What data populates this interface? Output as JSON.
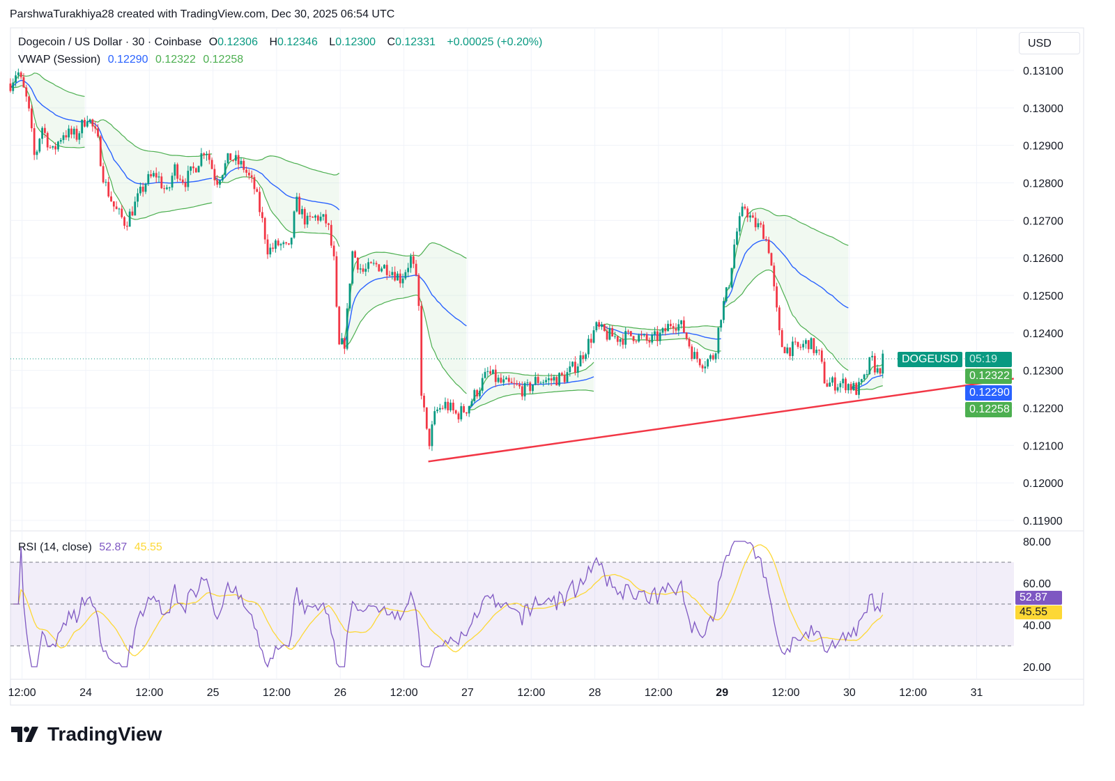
{
  "header": {
    "attribution": "ParshwaTurakhiya28 created with TradingView.com, Dec 30, 2025 06:54 UTC"
  },
  "legend": {
    "symbol": "Dogecoin / US Dollar · 30 · Coinbase",
    "o_label": "O",
    "o": "0.12306",
    "h_label": "H",
    "h": "0.12346",
    "l_label": "L",
    "l": "0.12300",
    "c_label": "C",
    "c": "0.12331",
    "change": "+0.00025 (+0.20%)",
    "vwap_label": "VWAP (Session)",
    "vwap": "0.12290",
    "vwap_upper": "0.12322",
    "vwap_lower": "0.12258",
    "rsi_label": "RSI (14, close)",
    "rsi": "52.87",
    "rsi_ma": "45.55"
  },
  "currency": "USD",
  "price_tags": {
    "symbol": "DOGEUSD",
    "countdown": "05:19",
    "upper": "0.12322",
    "vwap": "0.12290",
    "lower": "0.12258",
    "rsi": "52.87",
    "rsi_ma": "45.55"
  },
  "colors": {
    "up": "#089981",
    "down": "#f23645",
    "vwap": "#2962ff",
    "band": "#4caf50",
    "rsi": "#7e57c2",
    "rsi_ma": "#fdd835",
    "trend": "#f23645"
  },
  "logo": "TradingView",
  "chart_data": {
    "type": "candlestick",
    "title": "Dogecoin / US Dollar · 30 · Coinbase",
    "x_unit": "hours since Dec 24 00:00 UTC",
    "anchors": [
      [
        -14.2,
        0.13065
      ],
      [
        -12.9,
        0.13102
      ],
      [
        -10.9,
        0.13009
      ],
      [
        -9.6,
        0.1286
      ],
      [
        -8.3,
        0.12953
      ],
      [
        -6.3,
        0.12879
      ],
      [
        -4.3,
        0.12934
      ],
      [
        -1.7,
        0.12925
      ],
      [
        0.3,
        0.12981
      ],
      [
        2.2,
        0.12916
      ],
      [
        3.5,
        0.12804
      ],
      [
        5.5,
        0.1273
      ],
      [
        7.5,
        0.12693
      ],
      [
        9.5,
        0.12748
      ],
      [
        11.4,
        0.12804
      ],
      [
        13.4,
        0.12823
      ],
      [
        15.4,
        0.12767
      ],
      [
        16.7,
        0.12841
      ],
      [
        18.7,
        0.12804
      ],
      [
        20.6,
        0.12841
      ],
      [
        22.6,
        0.12897
      ],
      [
        24.6,
        0.12804
      ],
      [
        27.2,
        0.12869
      ],
      [
        29.8,
        0.12841
      ],
      [
        31.8,
        0.12786
      ],
      [
        33.1,
        0.12711
      ],
      [
        34.4,
        0.12618
      ],
      [
        36.4,
        0.12637
      ],
      [
        38.4,
        0.12618
      ],
      [
        39.7,
        0.12748
      ],
      [
        41.7,
        0.12693
      ],
      [
        43.6,
        0.12711
      ],
      [
        45.6,
        0.12693
      ],
      [
        46.9,
        0.12581
      ],
      [
        47.6,
        0.12358
      ],
      [
        48.9,
        0.12376
      ],
      [
        50.2,
        0.12618
      ],
      [
        52.2,
        0.12562
      ],
      [
        54.8,
        0.12581
      ],
      [
        57.4,
        0.12572
      ],
      [
        59.4,
        0.12544
      ],
      [
        61.4,
        0.126
      ],
      [
        62.7,
        0.12507
      ],
      [
        63.3,
        0.12246
      ],
      [
        64.6,
        0.12097
      ],
      [
        66.0,
        0.1219
      ],
      [
        67.9,
        0.12209
      ],
      [
        69.9,
        0.12181
      ],
      [
        71.9,
        0.122
      ],
      [
        73.8,
        0.12246
      ],
      [
        75.8,
        0.12293
      ],
      [
        78.4,
        0.12265
      ],
      [
        81.1,
        0.12256
      ],
      [
        83.0,
        0.12246
      ],
      [
        85.0,
        0.12274
      ],
      [
        87.6,
        0.12274
      ],
      [
        90.3,
        0.12283
      ],
      [
        92.9,
        0.12321
      ],
      [
        94.9,
        0.12376
      ],
      [
        96.2,
        0.12414
      ],
      [
        98.2,
        0.12395
      ],
      [
        100.8,
        0.12386
      ],
      [
        103.4,
        0.12395
      ],
      [
        106.0,
        0.12376
      ],
      [
        108.7,
        0.12395
      ],
      [
        110.6,
        0.12432
      ],
      [
        112.6,
        0.12414
      ],
      [
        114.6,
        0.12339
      ],
      [
        116.6,
        0.12321
      ],
      [
        118.5,
        0.12339
      ],
      [
        119.8,
        0.12451
      ],
      [
        121.2,
        0.12525
      ],
      [
        122.5,
        0.12655
      ],
      [
        124.2,
        0.12739
      ],
      [
        125.8,
        0.12693
      ],
      [
        127.7,
        0.12674
      ],
      [
        129.0,
        0.12618
      ],
      [
        129.7,
        0.12525
      ],
      [
        131.0,
        0.1237
      ],
      [
        132.3,
        0.12358
      ],
      [
        134.3,
        0.12358
      ],
      [
        136.3,
        0.12376
      ],
      [
        138.3,
        0.12339
      ],
      [
        139.5,
        0.12265
      ],
      [
        141.5,
        0.12265
      ],
      [
        143.5,
        0.12265
      ],
      [
        145.5,
        0.12246
      ],
      [
        146.8,
        0.12274
      ],
      [
        148.1,
        0.1233
      ],
      [
        149.4,
        0.12293
      ],
      [
        150.4,
        0.12331
      ]
    ],
    "trendline": [
      [
        64.6,
        0.12057
      ],
      [
        175.0,
        0.12278
      ]
    ],
    "y_ticks": [
      "0.13100",
      "0.13000",
      "0.12900",
      "0.12800",
      "0.12700",
      "0.12600",
      "0.12500",
      "0.12400",
      "0.12300",
      "0.12200",
      "0.12100",
      "0.12000",
      "0.11900"
    ],
    "ylim": [
      0.11875,
      0.13215
    ],
    "x_ticks": [
      {
        "t": -12,
        "label": "12:00"
      },
      {
        "t": 0,
        "label": "24"
      },
      {
        "t": 12,
        "label": "12:00"
      },
      {
        "t": 24,
        "label": "25"
      },
      {
        "t": 36,
        "label": "12:00"
      },
      {
        "t": 48,
        "label": "26"
      },
      {
        "t": 60,
        "label": "12:00"
      },
      {
        "t": 72,
        "label": "27"
      },
      {
        "t": 84,
        "label": "12:00"
      },
      {
        "t": 96,
        "label": "28"
      },
      {
        "t": 108,
        "label": "12:00"
      },
      {
        "t": 120,
        "label": "29"
      },
      {
        "t": 132,
        "label": "12:00"
      },
      {
        "t": 144,
        "label": "30"
      },
      {
        "t": 156,
        "label": "12:00"
      },
      {
        "t": 168,
        "label": "31"
      }
    ],
    "rsi": {
      "ticks": [
        "80.00",
        "60.00",
        "40.00",
        "20.00"
      ],
      "upper": 70,
      "middle": 50,
      "lower": 30,
      "ylim": [
        20,
        80
      ]
    }
  }
}
